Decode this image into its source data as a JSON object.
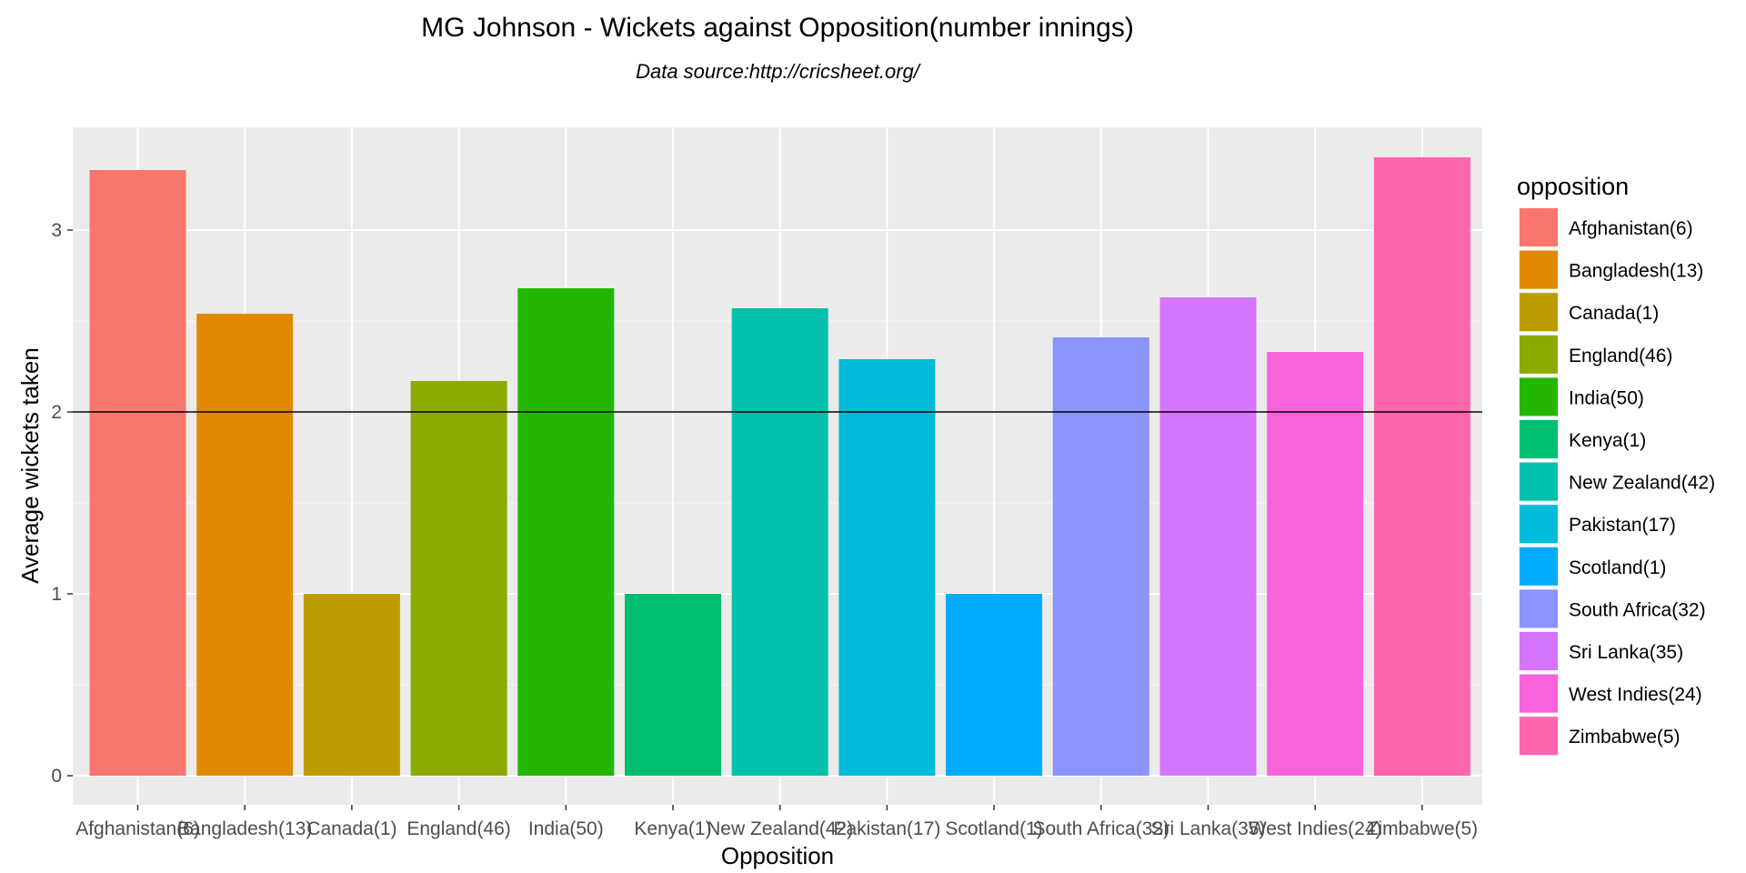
{
  "chart_data": {
    "type": "bar",
    "title": "MG Johnson - Wickets against Opposition(number innings)",
    "subtitle": "Data source:http://cricsheet.org/",
    "xlabel": "Opposition",
    "ylabel": "Average wickets taken",
    "ylim": [
      0,
      3.5
    ],
    "yticks": [
      0,
      1,
      2,
      3
    ],
    "reference_line": 2,
    "grid": true,
    "legend_title": "opposition",
    "legend_position": "right",
    "categories": [
      "Afghanistan(6)",
      "Bangladesh(13)",
      "Canada(1)",
      "England(46)",
      "India(50)",
      "Kenya(1)",
      "New Zealand(42)",
      "Pakistan(17)",
      "Scotland(1)",
      "South Africa(32)",
      "Sri Lanka(35)",
      "West Indies(24)",
      "Zimbabwe(5)"
    ],
    "values": [
      3.33,
      2.54,
      1.0,
      2.17,
      2.68,
      1.0,
      2.57,
      2.29,
      1.0,
      2.41,
      2.63,
      2.33,
      3.4
    ],
    "colors": [
      "#F8766D",
      "#E18A00",
      "#BE9C00",
      "#8CAB00",
      "#24B700",
      "#00BE70",
      "#00C1AB",
      "#00BBDA",
      "#00ACFC",
      "#8B93FF",
      "#D575FE",
      "#F962DD",
      "#FF65AC"
    ]
  }
}
